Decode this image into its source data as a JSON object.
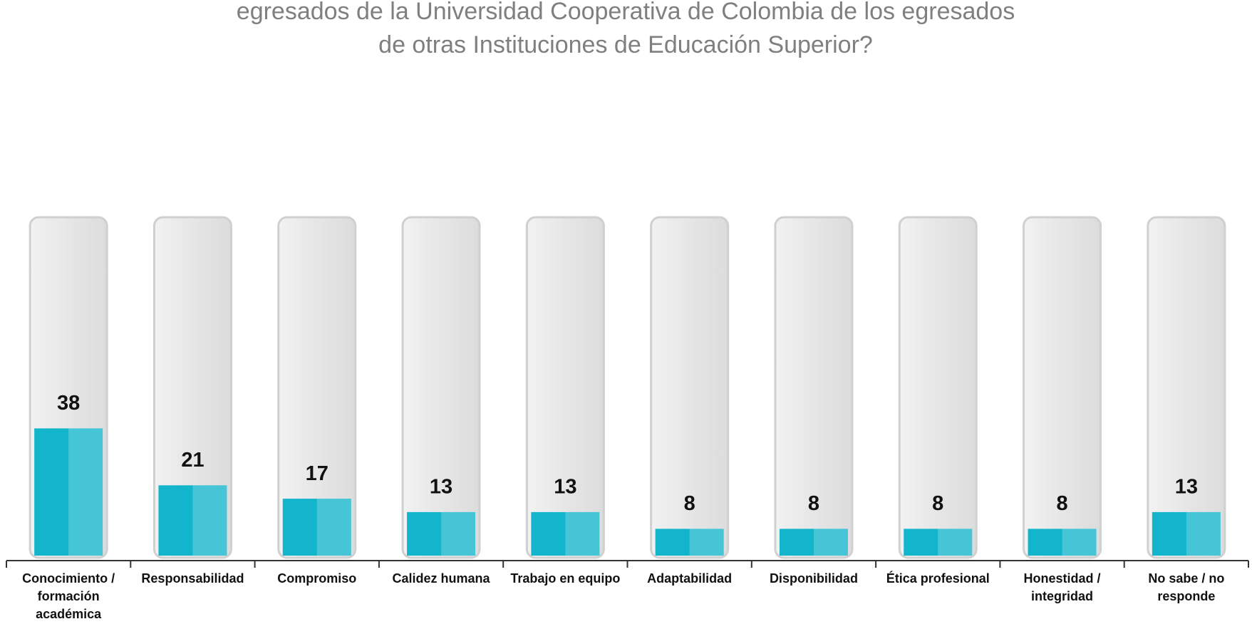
{
  "chart_data": {
    "type": "bar",
    "title_lines": [
      "egresados de la Universidad Cooperativa de Colombia de los egresados",
      "de otras Instituciones de Educación Superior?"
    ],
    "categories": [
      "Conocimiento / formación académica",
      "Responsabilidad",
      "Compromiso",
      "Calidez humana",
      "Trabajo en equipo",
      "Adaptabilidad",
      "Disponibilidad",
      "Ética profesional",
      "Honestidad / integridad",
      "No sabe / no responde"
    ],
    "values": [
      38,
      21,
      17,
      13,
      13,
      8,
      8,
      8,
      8,
      13
    ],
    "color": "#12b5cc",
    "ylim": [
      0,
      100
    ]
  }
}
